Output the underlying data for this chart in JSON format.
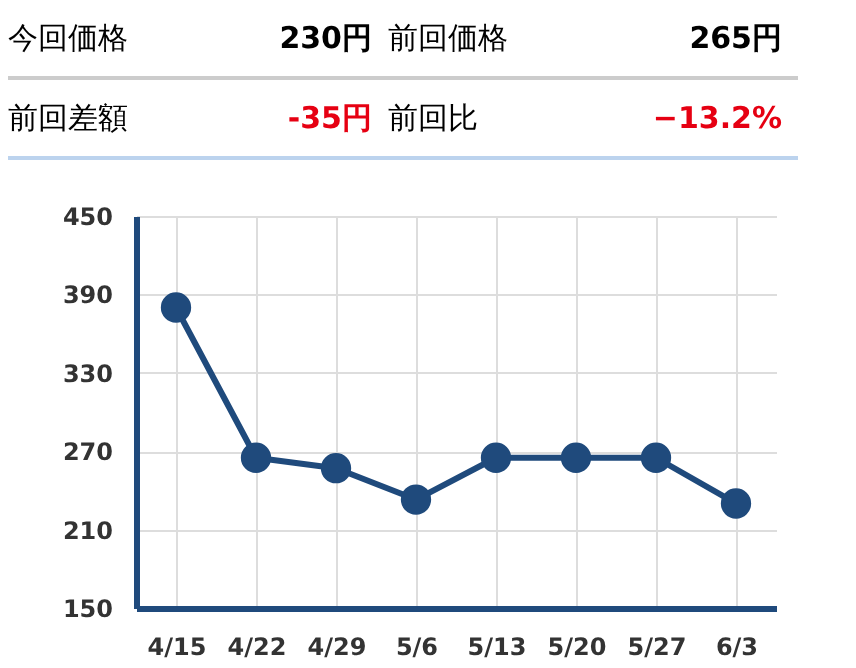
{
  "chart_data": [
    {
      "type": "other",
      "annotations": [
        "今回価格",
        "230円",
        "前回価格",
        "265円",
        "前回差額",
        "-35円",
        "前回比",
        "−13.2%"
      ]
    },
    {
      "type": "line",
      "categories": [
        "4/15",
        "4/22",
        "4/29",
        "5/6",
        "5/13",
        "5/20",
        "5/27",
        "6/3"
      ],
      "series": [
        {
          "color": "#1f4a7c",
          "values": [
            380,
            265,
            257,
            233,
            265,
            265,
            265,
            230
          ]
        }
      ],
      "ylim": [
        150,
        450
      ],
      "yticks": [
        150,
        210,
        270,
        330,
        390,
        450
      ],
      "grid": true,
      "marker": "circle"
    }
  ]
}
